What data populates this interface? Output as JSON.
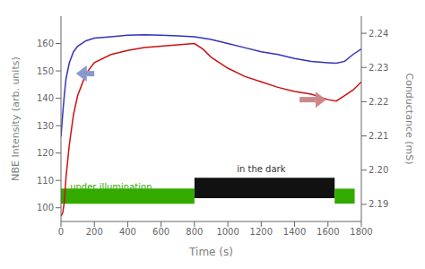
{
  "chart_data": {
    "type": "line",
    "x": [
      0,
      5,
      10,
      20,
      30,
      50,
      75,
      100,
      150,
      200,
      300,
      400,
      500,
      600,
      700,
      800,
      850,
      900,
      1000,
      1100,
      1200,
      1300,
      1400,
      1500,
      1600,
      1650,
      1700,
      1750,
      1800
    ],
    "series": [
      {
        "color": "#3333bb",
        "values": [
          126,
          130,
          134,
          141,
          147,
          153,
          157,
          159,
          161,
          162,
          162.5,
          163,
          163.2,
          163,
          162.8,
          162.5,
          162,
          161.5,
          160,
          158.5,
          157,
          156,
          154.5,
          153.5,
          153,
          152.8,
          153.5,
          156,
          158
        ]
      },
      {
        "color": "#cc1111",
        "values": [
          97,
          97.5,
          98,
          102,
          111,
          123,
          134,
          141,
          149,
          153,
          156,
          157.5,
          158.5,
          159,
          159.5,
          160,
          158,
          155,
          151,
          148,
          146,
          144,
          142.5,
          141.5,
          139.5,
          139,
          141,
          143,
          146
        ]
      }
    ],
    "xlabel": "Time (s)",
    "ylabel": "NBE Intensity (arb. units)",
    "y2label": "Conductance (mS)",
    "xlim": [
      0,
      1800
    ],
    "xticks": [
      0,
      200,
      400,
      600,
      800,
      1000,
      1200,
      1400,
      1600,
      1800
    ],
    "ylim": [
      95,
      170
    ],
    "yticks": [
      100,
      110,
      120,
      130,
      140,
      150,
      160
    ],
    "y2lim": [
      2.185,
      2.245
    ],
    "y2ticks": [
      2.19,
      {
        "value": 2.2,
        "label": "2.20"
      },
      2.21,
      2.22,
      2.23,
      2.24
    ],
    "grid": false,
    "annotations": [
      {
        "type": "rect",
        "x": [
          0,
          800
        ],
        "y": [
          101.5,
          107
        ],
        "color": "#33aa00"
      },
      {
        "type": "rect",
        "x": [
          800,
          1640
        ],
        "y": [
          103.5,
          111
        ],
        "color": "#111111"
      },
      {
        "type": "rect",
        "x": [
          1640,
          1760
        ],
        "y": [
          101.5,
          107
        ],
        "color": "#33aa00"
      },
      {
        "type": "text",
        "text": "under illumination",
        "x": 300,
        "y": 107.5,
        "color": "#33aa00"
      },
      {
        "type": "text",
        "text": "in the dark",
        "x": 1200,
        "y": 114
      },
      {
        "type": "arrow",
        "x": [
          200,
          90
        ],
        "y": [
          149,
          149
        ],
        "color": "#8899cc"
      },
      {
        "type": "arrow",
        "x": [
          1430,
          1590
        ],
        "y": [
          139.5,
          139.5
        ],
        "color": "#cc8888"
      }
    ]
  }
}
